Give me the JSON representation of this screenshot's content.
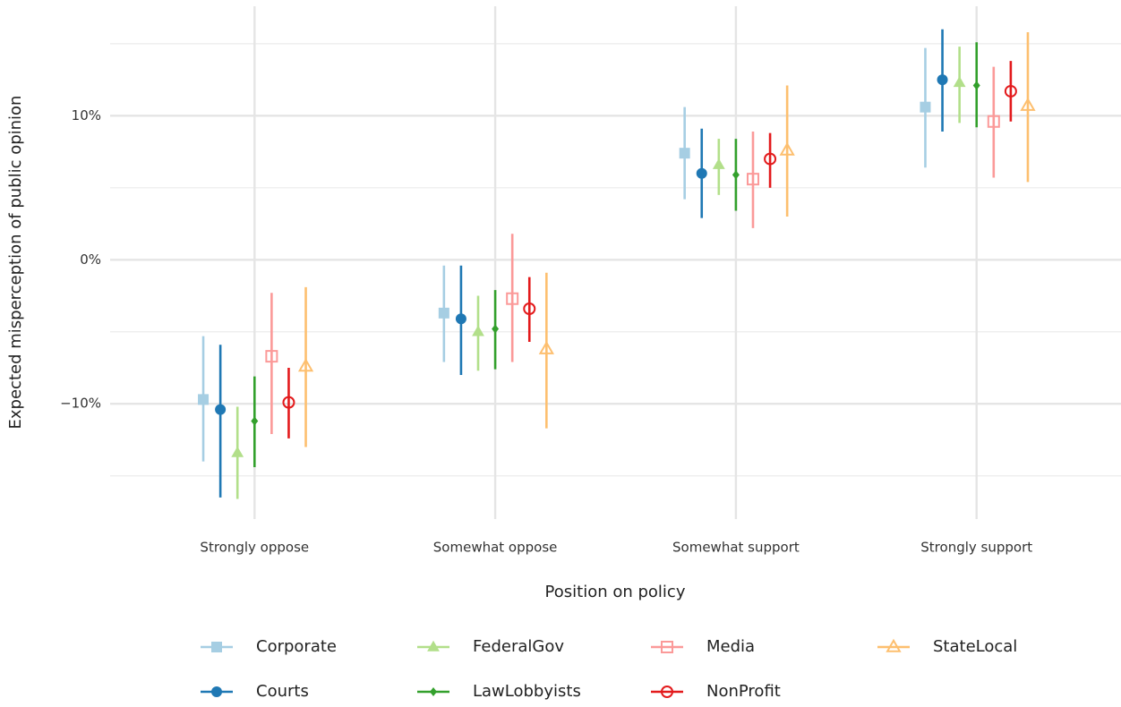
{
  "chart_data": {
    "type": "pointrange",
    "x_label": "Position on policy",
    "y_label": "Expected misperception of public opinion",
    "categories": [
      "Strongly oppose",
      "Somewhat oppose",
      "Somewhat support",
      "Strongly support"
    ],
    "ylim": [
      -18,
      17.6
    ],
    "yticks": [
      {
        "value": -10,
        "label": "−10%"
      },
      {
        "value": 0,
        "label": "0%"
      },
      {
        "value": 10,
        "label": "10%"
      }
    ],
    "minor_yticks": [
      -15,
      -5,
      5,
      15
    ],
    "grid": true,
    "legend_position": "bottom",
    "series": [
      {
        "name": "Corporate",
        "color": "#a6cee3",
        "marker": "square",
        "values": [
          -9.7,
          -3.7,
          7.4,
          10.6
        ],
        "lower": [
          -14.0,
          -7.1,
          4.2,
          6.4
        ],
        "upper": [
          -5.3,
          -0.4,
          10.6,
          14.7
        ]
      },
      {
        "name": "Courts",
        "color": "#1f78b4",
        "marker": "circle",
        "values": [
          -10.4,
          -4.1,
          6.0,
          12.5
        ],
        "lower": [
          -16.5,
          -8.0,
          2.9,
          8.9
        ],
        "upper": [
          -5.9,
          -0.4,
          9.1,
          16.0
        ]
      },
      {
        "name": "FederalGov",
        "color": "#b2df8a",
        "marker": "triangle",
        "values": [
          -13.4,
          -5.0,
          6.6,
          12.3
        ],
        "lower": [
          -16.6,
          -7.7,
          4.5,
          9.5
        ],
        "upper": [
          -10.2,
          -2.5,
          8.4,
          14.8
        ]
      },
      {
        "name": "LawLobbyists",
        "color": "#33a02c",
        "marker": "diamond",
        "values": [
          -11.2,
          -4.8,
          5.9,
          12.1
        ],
        "lower": [
          -14.4,
          -7.6,
          3.4,
          9.2
        ],
        "upper": [
          -8.1,
          -2.1,
          8.4,
          15.1
        ]
      },
      {
        "name": "Media",
        "color": "#fb9a99",
        "marker": "square-open",
        "values": [
          -6.7,
          -2.7,
          5.6,
          9.6
        ],
        "lower": [
          -12.1,
          -7.1,
          2.2,
          5.7
        ],
        "upper": [
          -2.3,
          1.8,
          8.9,
          13.4
        ]
      },
      {
        "name": "NonProfit",
        "color": "#e31a1c",
        "marker": "circle-open",
        "values": [
          -9.9,
          -3.4,
          7.0,
          11.7
        ],
        "lower": [
          -12.4,
          -5.7,
          5.0,
          9.6
        ],
        "upper": [
          -7.5,
          -1.2,
          8.8,
          13.8
        ]
      },
      {
        "name": "StateLocal",
        "color": "#fdbf6f",
        "marker": "triangle-open",
        "values": [
          -7.4,
          -6.2,
          7.6,
          10.7
        ],
        "lower": [
          -13.0,
          -11.7,
          3.0,
          5.4
        ],
        "upper": [
          -1.9,
          -0.9,
          12.1,
          15.8
        ]
      }
    ]
  }
}
